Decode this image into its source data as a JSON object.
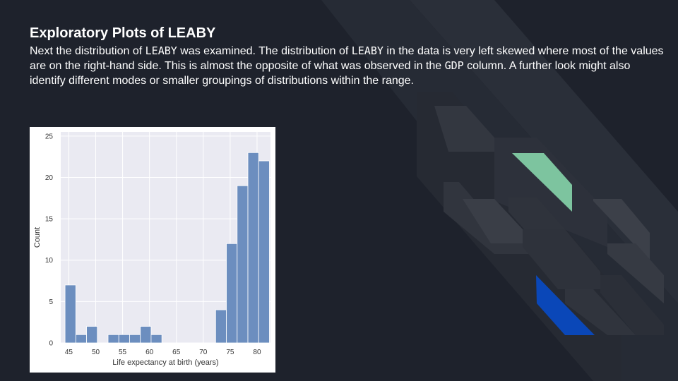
{
  "slide": {
    "title": "Exploratory Plots of LEABY",
    "body": {
      "p1": "Next the distribution of ",
      "t1": "LEABY",
      "p2": " was examined. The distribution of ",
      "t2": "LEABY",
      "p3": " in the data is very left skewed where most of the values are on the right-hand side. This is almost the opposite of what was observed in the ",
      "t3": "GDP",
      "p4": " column. A further look might also identify different modes or smaller groupings of distributions within the range."
    }
  },
  "colors": {
    "background": "#1e222c",
    "bar": "#6c8ebf",
    "plot_bg": "#eaeaf2",
    "accent_green": "#7dc49f",
    "accent_blue": "#0a47b8"
  },
  "chart_data": {
    "type": "bar",
    "xlabel": "Life expectancy at birth (years)",
    "ylabel": "Count",
    "xlim": [
      43.5,
      82.5
    ],
    "ylim": [
      0,
      25.5
    ],
    "xticks": [
      45,
      50,
      55,
      60,
      65,
      70,
      75,
      80
    ],
    "yticks": [
      0,
      5,
      10,
      15,
      20,
      25
    ],
    "grid": true,
    "bins": [
      {
        "x0": 44.3,
        "x1": 46.3,
        "count": 7
      },
      {
        "x0": 46.3,
        "x1": 48.3,
        "count": 1
      },
      {
        "x0": 48.3,
        "x1": 50.3,
        "count": 2
      },
      {
        "x0": 50.3,
        "x1": 52.3,
        "count": 0
      },
      {
        "x0": 52.3,
        "x1": 54.3,
        "count": 1
      },
      {
        "x0": 54.3,
        "x1": 56.3,
        "count": 1
      },
      {
        "x0": 56.3,
        "x1": 58.3,
        "count": 1
      },
      {
        "x0": 58.3,
        "x1": 60.3,
        "count": 2
      },
      {
        "x0": 60.3,
        "x1": 62.3,
        "count": 1
      },
      {
        "x0": 62.3,
        "x1": 64.3,
        "count": 0
      },
      {
        "x0": 64.3,
        "x1": 66.3,
        "count": 0
      },
      {
        "x0": 66.3,
        "x1": 68.3,
        "count": 0
      },
      {
        "x0": 68.3,
        "x1": 70.3,
        "count": 0
      },
      {
        "x0": 70.3,
        "x1": 72.3,
        "count": 0
      },
      {
        "x0": 72.3,
        "x1": 74.3,
        "count": 4
      },
      {
        "x0": 74.3,
        "x1": 76.3,
        "count": 12
      },
      {
        "x0": 76.3,
        "x1": 78.3,
        "count": 19
      },
      {
        "x0": 78.3,
        "x1": 80.3,
        "count": 23
      },
      {
        "x0": 80.3,
        "x1": 82.3,
        "count": 22
      }
    ]
  }
}
